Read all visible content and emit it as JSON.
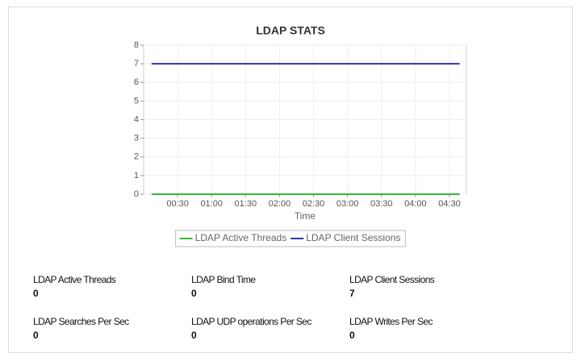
{
  "chart_data": {
    "type": "line",
    "title": "LDAP STATS",
    "x_label": "Time",
    "x": [
      7,
      279
    ],
    "xlim": [
      0,
      285
    ],
    "xticks": [
      {
        "value": 30,
        "label": "00:30"
      },
      {
        "value": 60,
        "label": "01:00"
      },
      {
        "value": 90,
        "label": "01:30"
      },
      {
        "value": 120,
        "label": "02:00"
      },
      {
        "value": 150,
        "label": "02:30"
      },
      {
        "value": 180,
        "label": "03:00"
      },
      {
        "value": 210,
        "label": "03:30"
      },
      {
        "value": 240,
        "label": "04:00"
      },
      {
        "value": 270,
        "label": "04:30"
      }
    ],
    "ylim": [
      0,
      8
    ],
    "yticks": [
      0,
      1,
      2,
      3,
      4,
      5,
      6,
      7,
      8
    ],
    "grid": true,
    "series": [
      {
        "name": "LDAP Active Threads",
        "color": "#33bb33",
        "values": [
          0,
          0
        ]
      },
      {
        "name": "LDAP Client Sessions",
        "color": "#3333aa",
        "values": [
          7,
          7
        ]
      }
    ]
  },
  "stats": [
    {
      "label": "LDAP Active Threads",
      "value": 0
    },
    {
      "label": "LDAP Bind Time",
      "value": 0
    },
    {
      "label": "LDAP Client Sessions",
      "value": 7
    },
    {
      "label": "LDAP Searches Per Sec",
      "value": 0
    },
    {
      "label": "LDAP UDP operations Per Sec",
      "value": 0
    },
    {
      "label": "LDAP Writes Per Sec",
      "value": 0
    }
  ]
}
